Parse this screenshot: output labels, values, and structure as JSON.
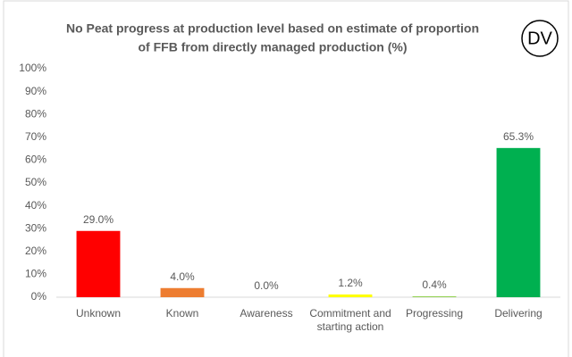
{
  "chart_data": {
    "type": "bar",
    "title": [
      "No Peat progress at production level based on estimate of proportion",
      "of FFB from directly managed production (%)"
    ],
    "categories": [
      "Unknown",
      "Known",
      "Awareness",
      "Commitment and starting action",
      "Progressing",
      "Delivering"
    ],
    "values": [
      29.0,
      4.0,
      0.0,
      1.2,
      0.4,
      65.3
    ],
    "value_labels": [
      "29.0%",
      "4.0%",
      "0.0%",
      "1.2%",
      "0.4%",
      "65.3%"
    ],
    "colors": [
      "#ff0000",
      "#ed7d31",
      "#ffc000",
      "#ffff00",
      "#92d050",
      "#00b050"
    ],
    "ylim": [
      0,
      100
    ],
    "yticks": [
      {
        "value": 0,
        "label": "0%"
      },
      {
        "value": 10,
        "label": "10%"
      },
      {
        "value": 20,
        "label": "20%"
      },
      {
        "value": 30,
        "label": "30%"
      },
      {
        "value": 40,
        "label": "40%"
      },
      {
        "value": 50,
        "label": "50%"
      },
      {
        "value": 60,
        "label": "60%"
      },
      {
        "value": 70,
        "label": "70%"
      },
      {
        "value": 80,
        "label": "80%"
      },
      {
        "value": 90,
        "label": "90%"
      },
      {
        "value": 100,
        "label": "100%"
      }
    ],
    "grid": false
  },
  "logo": {
    "text": "DV"
  }
}
